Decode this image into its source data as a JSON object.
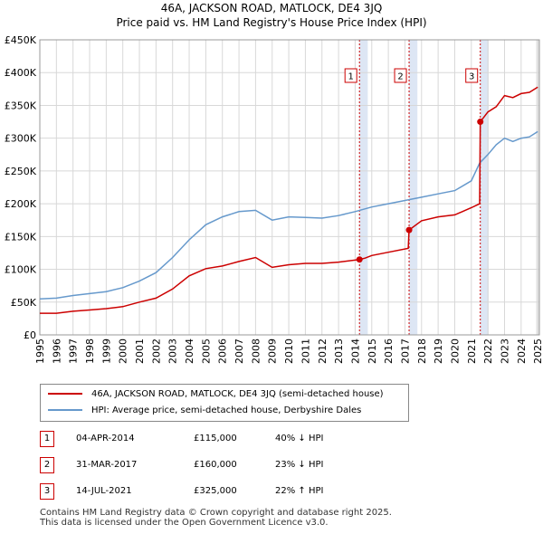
{
  "title_line1": "46A, JACKSON ROAD, MATLOCK, DE4 3JQ",
  "title_line2": "Price paid vs. HM Land Registry's House Price Index (HPI)",
  "colors": {
    "property": "#cc0000",
    "hpi": "#6699cc",
    "shade": "#dde6f4",
    "marker": "#cc0000"
  },
  "legend": {
    "property_label": "46A, JACKSON ROAD, MATLOCK, DE4 3JQ (semi-detached house)",
    "hpi_label": "HPI: Average price, semi-detached house, Derbyshire Dales"
  },
  "sales": [
    {
      "num": "1",
      "date": "04-APR-2014",
      "price": "£115,000",
      "hpi": "40% ↓ HPI"
    },
    {
      "num": "2",
      "date": "31-MAR-2017",
      "price": "£160,000",
      "hpi": "23% ↓ HPI"
    },
    {
      "num": "3",
      "date": "14-JUL-2021",
      "price": "£325,000",
      "hpi": "22% ↑ HPI"
    }
  ],
  "footer": {
    "line1": "Contains HM Land Registry data © Crown copyright and database right 2025.",
    "line2": "This data is licensed under the Open Government Licence v3.0."
  },
  "chart_data": {
    "type": "line",
    "title": "46A, JACKSON ROAD, MATLOCK, DE4 3JQ - Price paid vs. HM Land Registry's House Price Index (HPI)",
    "xlabel": "",
    "ylabel": "",
    "xlim": [
      1995,
      2025.1
    ],
    "ylim": [
      0,
      450000
    ],
    "grid": true,
    "y_ticks": [
      0,
      50000,
      100000,
      150000,
      200000,
      250000,
      300000,
      350000,
      400000,
      450000
    ],
    "y_tick_labels": [
      "£0",
      "£50K",
      "£100K",
      "£150K",
      "£200K",
      "£250K",
      "£300K",
      "£350K",
      "£400K",
      "£450K"
    ],
    "x_ticks": [
      1995,
      1996,
      1997,
      1998,
      1999,
      2000,
      2001,
      2002,
      2003,
      2004,
      2005,
      2006,
      2007,
      2008,
      2009,
      2010,
      2011,
      2012,
      2013,
      2014,
      2015,
      2016,
      2017,
      2018,
      2019,
      2020,
      2021,
      2022,
      2023,
      2024,
      2025
    ],
    "sale_markers": [
      {
        "label": "1",
        "x": 2014.26,
        "y": 115000
      },
      {
        "label": "2",
        "x": 2017.25,
        "y": 160000
      },
      {
        "label": "3",
        "x": 2021.54,
        "y": 325000
      }
    ],
    "series": [
      {
        "name": "46A, JACKSON ROAD, MATLOCK, DE4 3JQ (semi-detached house)",
        "x": [
          1995,
          1996,
          1997,
          1998,
          1999,
          2000,
          2001,
          2002,
          2003,
          2004,
          2005,
          2006,
          2007,
          2008,
          2009,
          2010,
          2011,
          2012,
          2013,
          2014.26,
          2014.6,
          2015,
          2016,
          2017.2,
          2017.25,
          2018,
          2019,
          2020,
          2021,
          2021.5,
          2021.54,
          2022,
          2022.5,
          2023,
          2023.5,
          2024,
          2024.5,
          2025
        ],
        "y": [
          33000,
          33000,
          36000,
          38000,
          40000,
          43000,
          50000,
          56000,
          70000,
          90000,
          101000,
          105000,
          112000,
          118000,
          103000,
          107000,
          109000,
          109000,
          111000,
          115000,
          117000,
          121000,
          126000,
          132000,
          160000,
          174000,
          180000,
          183000,
          194000,
          200000,
          325000,
          340000,
          348000,
          365000,
          362000,
          368000,
          370000,
          378000
        ]
      },
      {
        "name": "HPI: Average price, semi-detached house, Derbyshire Dales",
        "x": [
          1995,
          1996,
          1997,
          1998,
          1999,
          2000,
          2001,
          2002,
          2003,
          2004,
          2005,
          2006,
          2007,
          2008,
          2009,
          2010,
          2011,
          2012,
          2013,
          2014,
          2015,
          2016,
          2017,
          2018,
          2019,
          2020,
          2021,
          2021.5,
          2022,
          2022.5,
          2023,
          2023.5,
          2024,
          2024.5,
          2025
        ],
        "y": [
          55000,
          56000,
          60000,
          63000,
          66000,
          72000,
          82000,
          95000,
          118000,
          145000,
          168000,
          180000,
          188000,
          190000,
          175000,
          180000,
          179000,
          178000,
          182000,
          188000,
          195000,
          200000,
          205000,
          210000,
          215000,
          220000,
          235000,
          262000,
          275000,
          290000,
          300000,
          295000,
          300000,
          302000,
          310000
        ]
      }
    ]
  }
}
